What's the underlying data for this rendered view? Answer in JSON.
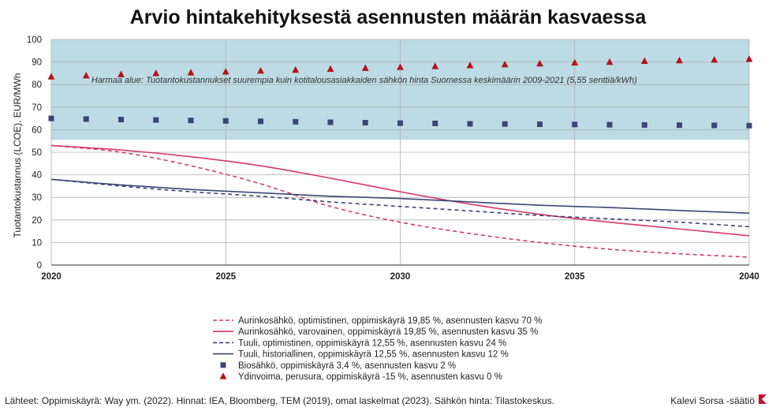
{
  "colors": {
    "region_fill": "#bcdbe4",
    "grid": "#b0b0b0",
    "axis": "#555555",
    "solar": "#d6386a",
    "wind": "#3c4577",
    "bio": "#3c4577",
    "nuclear": "#b5121b",
    "brand": "#c8102e"
  },
  "chart_data": {
    "type": "line",
    "title": "Arvio hintakehityksestä asennusten määrän kasvaessa",
    "ylabel": "Tuotantokustannus (LCOE), EUR/MWh",
    "xlabel": "",
    "xlim": [
      2020,
      2040
    ],
    "ylim": [
      0,
      100
    ],
    "x_ticks": [
      "2020",
      "2025",
      "2030",
      "2035",
      "2040"
    ],
    "y_ticks": [
      "0",
      "10",
      "20",
      "30",
      "40",
      "50",
      "60",
      "70",
      "80",
      "90",
      "100"
    ],
    "grid": true,
    "shaded_region": {
      "y_from": 55.5,
      "y_to": 100,
      "label": "Harmaa alue: Tuotantokustannukset suurempia kuin kotitalousasiakkaiden sähkön hinta Suomessa keskimäärin 2009-2021 (5,55 senttiä/kWh)"
    },
    "legend_position": "bottom",
    "series": [
      {
        "name": "Aurinkosähkö, optimistinen, oppimiskäyrä 19,85 %, asennusten kasvu 70 %",
        "style": "dashed",
        "color": "#d6386a",
        "x": [
          2020,
          2022,
          2024,
          2026,
          2028,
          2030,
          2032,
          2034,
          2036,
          2038,
          2040
        ],
        "y": [
          53,
          50,
          44,
          36,
          26,
          19,
          14,
          10,
          7,
          5,
          3.5
        ]
      },
      {
        "name": "Aurinkosähkö, varovainen, oppimiskäyrä 19,85 %, asennusten kasvu 35 %",
        "style": "solid",
        "color": "#d6386a",
        "x": [
          2020,
          2022,
          2024,
          2026,
          2028,
          2030,
          2032,
          2034,
          2036,
          2038,
          2040
        ],
        "y": [
          53,
          51,
          48,
          44,
          38.5,
          32.5,
          27,
          22.5,
          19,
          16,
          13
        ]
      },
      {
        "name": "Tuuli, optimistinen, oppimiskäyrä 12,55 %, asennusten kasvu 24 %",
        "style": "dashed",
        "color": "#3c4577",
        "x": [
          2020,
          2022,
          2024,
          2026,
          2028,
          2030,
          2032,
          2034,
          2036,
          2038,
          2040
        ],
        "y": [
          38,
          35,
          32.5,
          30.5,
          28,
          26,
          24,
          22,
          20.5,
          19,
          17
        ]
      },
      {
        "name": "Tuuli, historiallinen, oppimiskäyrä 12,55 %, asennusten kasvu 12 %",
        "style": "solid",
        "color": "#3c4577",
        "x": [
          2020,
          2022,
          2024,
          2026,
          2028,
          2030,
          2032,
          2034,
          2036,
          2038,
          2040
        ],
        "y": [
          38,
          35.5,
          33.5,
          32,
          30.5,
          29.5,
          28,
          26.5,
          25.5,
          24.2,
          23
        ]
      },
      {
        "name": "Biosähkö, oppimiskäyrä 3,4 %, asennusten kasvu 2 %",
        "style": "square-markers",
        "color": "#3c4577",
        "x": [
          2020,
          2021,
          2022,
          2023,
          2024,
          2025,
          2026,
          2027,
          2028,
          2029,
          2030,
          2031,
          2032,
          2033,
          2034,
          2035,
          2036,
          2037,
          2038,
          2039,
          2040
        ],
        "y": [
          65,
          64.7,
          64.5,
          64.3,
          64.1,
          63.9,
          63.7,
          63.5,
          63.3,
          63.1,
          62.9,
          62.8,
          62.6,
          62.5,
          62.4,
          62.3,
          62.2,
          62.1,
          62.0,
          61.9,
          61.8
        ]
      },
      {
        "name": "Ydinvoima, perusura, oppimiskäyrä -15 %, asennusten kasvu 0 %",
        "style": "triangle-markers",
        "color": "#b5121b",
        "x": [
          2020,
          2021,
          2022,
          2023,
          2024,
          2025,
          2026,
          2027,
          2028,
          2029,
          2030,
          2031,
          2032,
          2033,
          2034,
          2035,
          2036,
          2037,
          2038,
          2039,
          2040
        ],
        "y": [
          83.5,
          84,
          84.5,
          85,
          85.3,
          85.7,
          86.1,
          86.5,
          86.9,
          87.3,
          87.7,
          88.1,
          88.5,
          88.9,
          89.3,
          89.7,
          90,
          90.4,
          90.7,
          91,
          91.3
        ]
      }
    ]
  },
  "footer": {
    "sources": "Lähteet: Oppimiskäyrä: Way ym. (2022). Hinnat: IEA, Bloomberg, TEM (2019), omat laskelmat (2023). Sähkön hinta: Tilastokeskus.",
    "brand": "Kalevi Sorsa -säätiö"
  }
}
